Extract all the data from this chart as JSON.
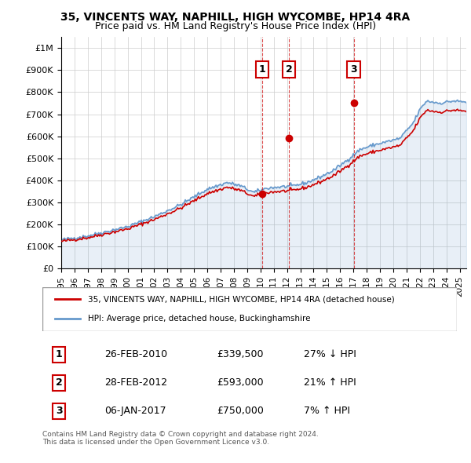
{
  "title1": "35, VINCENTS WAY, NAPHILL, HIGH WYCOMBE, HP14 4RA",
  "title2": "Price paid vs. HM Land Registry's House Price Index (HPI)",
  "ylabel_ticks": [
    "£0",
    "£100K",
    "£200K",
    "£300K",
    "£400K",
    "£500K",
    "£600K",
    "£700K",
    "£800K",
    "£900K",
    "£1M"
  ],
  "ytick_values": [
    0,
    100000,
    200000,
    300000,
    400000,
    500000,
    600000,
    700000,
    800000,
    900000,
    1000000
  ],
  "ylim": [
    0,
    1050000
  ],
  "xlim_start": 1995.0,
  "xlim_end": 2025.5,
  "sale_dates": [
    2010.15,
    2012.15,
    2017.02
  ],
  "sale_prices": [
    339500,
    593000,
    750000
  ],
  "sale_labels": [
    "1",
    "2",
    "3"
  ],
  "hpi_color": "#6699cc",
  "sale_line_color": "#cc0000",
  "sale_marker_color": "#cc0000",
  "dashed_line_color": "#cc0000",
  "legend_label_red": "35, VINCENTS WAY, NAPHILL, HIGH WYCOMBE, HP14 4RA (detached house)",
  "legend_label_blue": "HPI: Average price, detached house, Buckinghamshire",
  "table_rows": [
    [
      "1",
      "26-FEB-2010",
      "£339,500",
      "27% ↓ HPI"
    ],
    [
      "2",
      "28-FEB-2012",
      "£593,000",
      "21% ↑ HPI"
    ],
    [
      "3",
      "06-JAN-2017",
      "£750,000",
      "7% ↑ HPI"
    ]
  ],
  "footnote": "Contains HM Land Registry data © Crown copyright and database right 2024.\nThis data is licensed under the Open Government Licence v3.0.",
  "background_color": "#ffffff",
  "plot_bg_color": "#ffffff",
  "grid_color": "#cccccc"
}
